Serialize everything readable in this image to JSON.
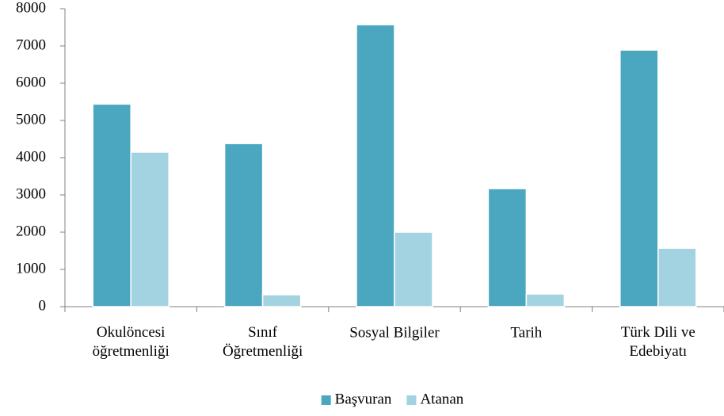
{
  "chart_data": {
    "type": "bar",
    "categories": [
      "Okulöncesi\nöğretmenliği",
      "Sınıf\nÖğretmenliği",
      "Sosyal Bilgiler",
      "Tarih",
      "Türk Dili ve\nEdebiyatı"
    ],
    "series": [
      {
        "name": "Başvuran",
        "color": "#4ba7c0",
        "values": [
          5440,
          4380,
          7570,
          3170,
          6890
        ]
      },
      {
        "name": "Atanan",
        "color": "#a3d2e0",
        "values": [
          4150,
          320,
          2000,
          340,
          1570
        ]
      }
    ],
    "ylim": [
      0,
      8000
    ],
    "yticks": [
      0,
      1000,
      2000,
      3000,
      4000,
      5000,
      6000,
      7000,
      8000
    ],
    "grid": false,
    "legend": "bottom"
  }
}
